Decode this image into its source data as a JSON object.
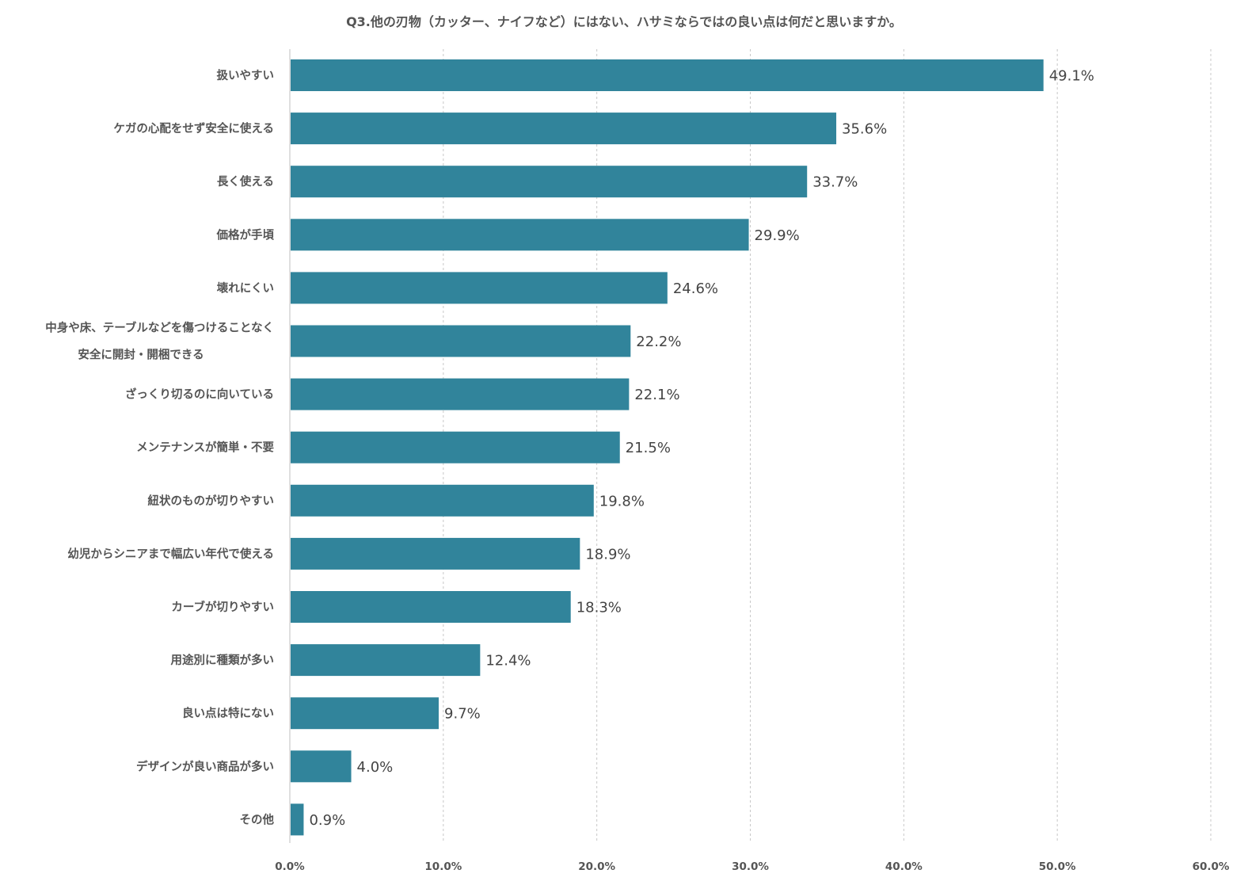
{
  "chart_data": {
    "type": "bar",
    "orientation": "horizontal",
    "title": "Q3.他の刃物（カッター、ナイフなど）にはない、ハサミならではの良い点は何だと思いますか。",
    "categories": [
      [
        "扱いやすい"
      ],
      [
        "ケガの心配をせず安全に使える"
      ],
      [
        "長く使える"
      ],
      [
        "価格が手頃"
      ],
      [
        "壊れにくい"
      ],
      [
        "中身や床、テーブルなどを傷つけることなく",
        "安全に開封・開梱できる"
      ],
      [
        "ざっくり切るのに向いている"
      ],
      [
        "メンテナンスが簡単・不要"
      ],
      [
        "紐状のものが切りやすい"
      ],
      [
        "幼児からシニアまで幅広い年代で使える"
      ],
      [
        "カーブが切りやすい"
      ],
      [
        "用途別に種類が多い"
      ],
      [
        "良い点は特にない"
      ],
      [
        "デザインが良い商品が多い"
      ],
      [
        "その他"
      ]
    ],
    "values": [
      49.1,
      35.6,
      33.7,
      29.9,
      24.6,
      22.2,
      22.1,
      21.5,
      19.8,
      18.9,
      18.3,
      12.4,
      9.7,
      4.0,
      0.9
    ],
    "value_labels": [
      "49.1%",
      "35.6%",
      "33.7%",
      "29.9%",
      "24.6%",
      "22.2%",
      "22.1%",
      "21.5%",
      "19.8%",
      "18.9%",
      "18.3%",
      "12.4%",
      "9.7%",
      "4.0%",
      "0.9%"
    ],
    "xlim": [
      0,
      60
    ],
    "x_ticks": [
      "0.0%",
      "10.0%",
      "20.0%",
      "30.0%",
      "40.0%",
      "50.0%",
      "60.0%"
    ],
    "xlabel": "",
    "ylabel": "",
    "grid": true,
    "legend": false,
    "bar_color": "#31849b"
  }
}
